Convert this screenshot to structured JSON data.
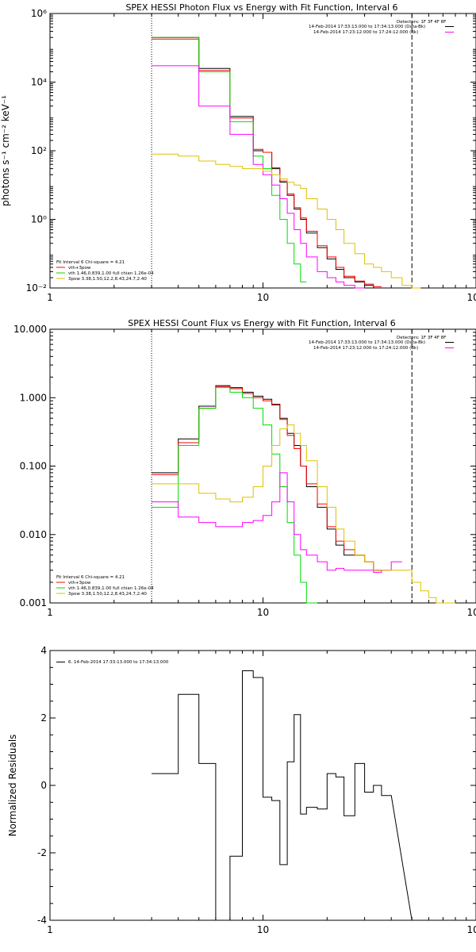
{
  "chart_data": [
    {
      "type": "line",
      "title": "SPEX HESSI Photon Flux vs Energy with Fit Function, Interval 6",
      "xlabel": "",
      "ylabel": "photons s⁻¹ cm⁻² keV⁻¹",
      "x_scale": "log",
      "y_scale": "log",
      "xlim": [
        1,
        100
      ],
      "ylim": [
        0.01,
        1000000
      ],
      "x_ticks": [
        {
          "value": 1,
          "label": "1"
        },
        {
          "value": 10,
          "label": "10"
        },
        {
          "value": 100,
          "label": "100"
        }
      ],
      "y_ticks": [
        {
          "value": 0.01,
          "label": "10⁻²"
        },
        {
          "value": 1,
          "label": "10⁰"
        },
        {
          "value": 100,
          "label": "10²"
        },
        {
          "value": 10000,
          "label": "10⁴"
        },
        {
          "value": 1000000,
          "label": "10⁶"
        }
      ],
      "vlines": [
        {
          "x": 3,
          "style": "dotted",
          "color": "#000000"
        },
        {
          "x": 50,
          "style": "dashed",
          "color": "#000000"
        }
      ],
      "bin_edges": [
        3,
        4,
        5,
        6,
        7,
        8,
        9,
        10,
        11,
        12,
        13,
        14,
        15,
        16,
        18,
        20,
        22,
        24,
        27,
        30,
        33,
        36,
        40,
        45,
        50,
        55
      ],
      "series": [
        {
          "key": "total",
          "color": "#000000",
          "values": [
            200000,
            200000,
            25000,
            25000,
            1000,
            1000,
            100,
            90,
            30,
            12,
            5,
            2,
            1,
            0.4,
            0.15,
            0.07,
            0.035,
            0.02,
            0.015,
            0.012,
            0.01,
            null,
            null,
            null,
            null
          ]
        },
        {
          "key": "vth",
          "color": "#ff0000",
          "values": [
            180000,
            180000,
            22000,
            22000,
            900,
            900,
            110,
            90,
            32,
            13,
            5.5,
            2.2,
            1.1,
            0.45,
            0.17,
            0.08,
            0.04,
            0.022,
            0.016,
            0.013,
            0.011,
            null,
            null,
            null,
            null
          ]
        },
        {
          "key": "vth_green",
          "color": "#00dd00",
          "values": [
            200000,
            200000,
            20000,
            20000,
            700,
            700,
            70,
            30,
            5,
            1,
            0.2,
            0.05,
            0.015,
            null,
            null,
            null,
            null,
            null,
            null,
            null,
            null,
            null,
            null,
            null,
            null
          ]
        },
        {
          "key": "magenta",
          "color": "#ff00ff",
          "values": [
            30000,
            30000,
            2000,
            2000,
            300,
            300,
            40,
            20,
            10,
            4,
            1.5,
            0.5,
            0.2,
            0.08,
            0.03,
            0.02,
            0.015,
            0.012,
            0.01,
            null,
            null,
            null,
            null,
            null,
            null
          ]
        },
        {
          "key": "3pow",
          "color": "#e0c000",
          "values": [
            80,
            70,
            50,
            40,
            35,
            30,
            30,
            25,
            20,
            15,
            12,
            10,
            8,
            4,
            2,
            1,
            0.5,
            0.2,
            0.1,
            0.05,
            0.04,
            0.03,
            0.02,
            0.012,
            0.01
          ]
        }
      ],
      "legend_header": "Detectors: 1F 3F 4F 8F",
      "legend": [
        {
          "text": "14-Feb-2014 17:33:13.000 to 17:34:13.000 (Data-Bk)",
          "color": "#000000"
        },
        {
          "text": "14-Feb-2014 17:23:12.000 to 17:24:12.000 (Bk)",
          "color": "#ff00ff"
        }
      ],
      "fit_info": "Fit Interval 6   Chi-square = 4.21",
      "fit_lines": [
        {
          "text": "vth+3pow",
          "color": "#ff0000"
        },
        {
          "text": "vth 1.46,0.839,1.00  full chian 1.26e-04",
          "color": "#00dd00"
        },
        {
          "text": "3pow 3.38,1.50,12.2,8.43,24.7,2.40",
          "color": "#e0c000"
        }
      ]
    },
    {
      "type": "line",
      "title": "SPEX HESSI Count Flux vs Energy with Fit Function, Interval 6",
      "xlabel": "",
      "ylabel": "",
      "x_scale": "log",
      "y_scale": "log",
      "xlim": [
        1,
        100
      ],
      "ylim": [
        0.001,
        10
      ],
      "x_ticks": [
        {
          "value": 1,
          "label": "1"
        },
        {
          "value": 10,
          "label": "10"
        },
        {
          "value": 100,
          "label": "100"
        }
      ],
      "y_ticks": [
        {
          "value": 0.001,
          "label": "0.001"
        },
        {
          "value": 0.01,
          "label": "0.010"
        },
        {
          "value": 0.1,
          "label": "0.100"
        },
        {
          "value": 1,
          "label": "1.000"
        },
        {
          "value": 10,
          "label": "10.000"
        }
      ],
      "vlines": [
        {
          "x": 3,
          "style": "dotted",
          "color": "#000000"
        },
        {
          "x": 50,
          "style": "dashed",
          "color": "#000000"
        }
      ],
      "bin_edges": [
        3,
        4,
        5,
        6,
        7,
        8,
        9,
        10,
        11,
        12,
        13,
        14,
        15,
        16,
        18,
        20,
        22,
        24,
        27,
        30,
        33,
        36,
        40,
        45,
        50,
        55,
        60,
        65,
        70,
        75,
        80
      ],
      "series": [
        {
          "key": "total",
          "color": "#000000",
          "values": [
            0.08,
            0.25,
            0.75,
            1.5,
            1.4,
            1.2,
            1.05,
            0.95,
            0.8,
            0.5,
            0.3,
            0.2,
            0.1,
            0.05,
            0.025,
            0.012,
            0.007,
            0.005,
            0.005,
            0.004,
            0.003,
            null,
            null,
            null,
            null,
            null,
            null,
            null,
            null,
            null
          ]
        },
        {
          "key": "vth",
          "color": "#ff0000",
          "values": [
            0.075,
            0.22,
            0.7,
            1.45,
            1.35,
            1.15,
            1,
            0.9,
            0.78,
            0.48,
            0.28,
            0.18,
            0.1,
            0.055,
            0.028,
            0.013,
            0.008,
            0.006,
            0.005,
            0.004,
            0.003,
            null,
            null,
            null,
            null,
            null,
            null,
            null,
            null,
            null
          ]
        },
        {
          "key": "vth_green",
          "color": "#00dd00",
          "values": [
            0.025,
            0.2,
            0.7,
            1.4,
            1.2,
            1,
            0.7,
            0.4,
            0.15,
            0.05,
            0.015,
            0.005,
            0.002,
            0.001,
            null,
            null,
            null,
            null,
            null,
            null,
            null,
            null,
            null,
            null,
            null,
            null,
            null,
            null,
            null,
            null
          ]
        },
        {
          "key": "magenta",
          "color": "#ff00ff",
          "values": [
            0.03,
            0.018,
            0.015,
            0.013,
            0.013,
            0.015,
            0.016,
            0.019,
            0.03,
            0.08,
            0.03,
            0.01,
            0.006,
            0.005,
            0.004,
            0.003,
            0.0032,
            0.003,
            0.003,
            0.003,
            0.0028,
            0.003,
            0.004,
            null,
            null,
            null,
            null,
            null,
            null,
            null
          ]
        },
        {
          "key": "3pow",
          "color": "#e0c000",
          "values": [
            0.055,
            0.055,
            0.04,
            0.033,
            0.03,
            0.035,
            0.05,
            0.1,
            0.2,
            0.35,
            0.4,
            0.3,
            0.2,
            0.12,
            0.05,
            0.025,
            0.012,
            0.008,
            0.005,
            0.004,
            0.003,
            0.003,
            0.003,
            0.003,
            0.002,
            0.0015,
            0.0012,
            0.001,
            0.001,
            0.001
          ]
        }
      ],
      "legend_header": "Detectors: 1F 3F 4F 8F",
      "legend": [
        {
          "text": "14-Feb-2014 17:33:13.000 to 17:34:13.000 (Data-Bk)",
          "color": "#000000"
        },
        {
          "text": "14-Feb-2014 17:23:12.000 to 17:24:12.000 (Bk)",
          "color": "#ff00ff"
        }
      ],
      "fit_info": "Fit Interval 6   Chi-square = 4.21",
      "fit_lines": [
        {
          "text": "vth+3pow",
          "color": "#ff0000"
        },
        {
          "text": "vth 1.46,0.839,1.00  full chian 1.26e-04",
          "color": "#00dd00"
        },
        {
          "text": "3pow 3.38,1.50,12.2,8.43,24.7,2.40",
          "color": "#e0c000"
        }
      ]
    },
    {
      "type": "line",
      "title": "",
      "xlabel": "",
      "ylabel": "Normalized Residuals",
      "x_scale": "log",
      "y_scale": "linear",
      "xlim": [
        1,
        100
      ],
      "ylim": [
        -4,
        4
      ],
      "x_ticks": [
        {
          "value": 1,
          "label": "1"
        },
        {
          "value": 10,
          "label": "10"
        },
        {
          "value": 100,
          "label": "100"
        }
      ],
      "y_ticks": [
        {
          "value": -4,
          "label": "-4"
        },
        {
          "value": -2,
          "label": "-2"
        },
        {
          "value": 0,
          "label": "0"
        },
        {
          "value": 2,
          "label": "2"
        },
        {
          "value": 4,
          "label": "4"
        }
      ],
      "y_minor_step": 0.5,
      "vlines": [],
      "bin_edges": [
        3,
        4,
        5,
        6,
        7,
        8,
        9,
        10,
        11,
        12,
        13,
        14,
        15,
        16,
        18,
        20,
        22,
        24,
        27,
        30,
        33,
        36,
        40,
        45,
        50
      ],
      "series": [
        {
          "key": "residuals",
          "color": "#000000",
          "start": [
            3,
            -4
          ],
          "end": [
            50,
            -4
          ],
          "values": [
            0.35,
            2.7,
            0.65,
            -4,
            -2.1,
            3.4,
            3.2,
            -0.35,
            -0.45,
            -2.35,
            0.7,
            2.1,
            -0.85,
            -0.65,
            -0.7,
            0.35,
            0.25,
            -0.9,
            0.65,
            -0.2,
            0,
            -0.3,
            null,
            null
          ]
        }
      ],
      "legend_header": "",
      "legend": [
        {
          "text": "6. 14-Feb-2014 17:33:13.000 to 17:34:13.000",
          "color": "#000000"
        }
      ],
      "fit_info": "",
      "fit_lines": []
    }
  ]
}
